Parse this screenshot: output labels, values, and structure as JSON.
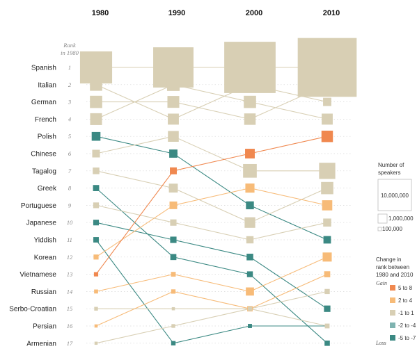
{
  "chart_data": {
    "type": "slopegraph",
    "title": "",
    "years": [
      "1980",
      "1990",
      "2000",
      "2010"
    ],
    "rank_note_line1": "Rank",
    "rank_note_line2": "in 1980",
    "languages": [
      {
        "name": "Spanish",
        "rank1980": "1",
        "ranks": [
          1,
          1,
          1,
          1
        ],
        "speakers": [
          11000000,
          17300000,
          28100000,
          37000000
        ]
      },
      {
        "name": "Italian",
        "rank1980": "2",
        "ranks": [
          2,
          4,
          2,
          3
        ],
        "speakers": [
          1600000,
          1300000,
          1000000,
          730000
        ]
      },
      {
        "name": "German",
        "rank1980": "3",
        "ranks": [
          3,
          3,
          4,
          2
        ],
        "speakers": [
          1600000,
          1500000,
          1400000,
          1100000
        ]
      },
      {
        "name": "French",
        "rank1980": "4",
        "ranks": [
          4,
          2,
          3,
          4
        ],
        "speakers": [
          1500000,
          1700000,
          1600000,
          1300000
        ]
      },
      {
        "name": "Polish",
        "rank1980": "5",
        "ranks": [
          5,
          6,
          9,
          11
        ],
        "speakers": [
          820000,
          720000,
          670000,
          600000
        ]
      },
      {
        "name": "Chinese",
        "rank1980": "6",
        "ranks": [
          6,
          5,
          7,
          7
        ],
        "speakers": [
          630000,
          1250000,
          2000000,
          2800000
        ]
      },
      {
        "name": "Tagalog",
        "rank1980": "7",
        "ranks": [
          7,
          8,
          10,
          8
        ],
        "speakers": [
          470000,
          840000,
          1200000,
          1600000
        ]
      },
      {
        "name": "Greek",
        "rank1980": "8",
        "ranks": [
          8,
          12,
          13,
          17
        ],
        "speakers": [
          400000,
          390000,
          365000,
          300000
        ]
      },
      {
        "name": "Portuguese",
        "rank1980": "9",
        "ranks": [
          9,
          10,
          11,
          10
        ],
        "speakers": [
          350000,
          430000,
          560000,
          690000
        ]
      },
      {
        "name": "Japanese",
        "rank1980": "10",
        "ranks": [
          10,
          11,
          12,
          15
        ],
        "speakers": [
          340000,
          430000,
          470000,
          440000
        ]
      },
      {
        "name": "Yiddish",
        "rank1980": "11",
        "ranks": [
          11,
          17,
          16,
          16
        ],
        "speakers": [
          320000,
          210000,
          180000,
          160000
        ]
      },
      {
        "name": "Korean",
        "rank1980": "12",
        "ranks": [
          12,
          9,
          8,
          9
        ],
        "speakers": [
          270000,
          620000,
          890000,
          1100000
        ]
      },
      {
        "name": "Vietnamese",
        "rank1980": "13",
        "ranks": [
          13,
          7,
          6,
          5
        ],
        "speakers": [
          200000,
          510000,
          1000000,
          1400000
        ]
      },
      {
        "name": "Russian",
        "rank1980": "14",
        "ranks": [
          14,
          13,
          14,
          12
        ],
        "speakers": [
          170000,
          240000,
          710000,
          880000
        ]
      },
      {
        "name": "Serbo-Croatian",
        "rank1980": "15",
        "ranks": [
          15,
          15,
          15,
          14
        ],
        "speakers": [
          150000,
          70000,
          230000,
          280000
        ]
      },
      {
        "name": "Persian",
        "rank1980": "16",
        "ranks": [
          16,
          14,
          15,
          13
        ],
        "speakers": [
          110000,
          200000,
          310000,
          390000
        ]
      },
      {
        "name": "Armenian",
        "rank1980": "17",
        "ranks": [
          17,
          16,
          15,
          16
        ],
        "speakers": [
          100000,
          150000,
          200000,
          240000
        ]
      }
    ],
    "size_legend": {
      "title_line1": "Number of",
      "title_line2": "speakers",
      "items": [
        {
          "label": "10,000,000",
          "value": 10000000
        },
        {
          "label": "1,000,000",
          "value": 1000000
        },
        {
          "label": "100,000",
          "value": 100000
        }
      ]
    },
    "color_legend": {
      "title_line1": "Change in",
      "title_line2": "rank between",
      "title_line3": "1980 and 2010",
      "gain_label": "Gain",
      "loss_label": "Loss",
      "items": [
        {
          "label": "5 to 8",
          "color": "#f0884f"
        },
        {
          "label": "2 to 4",
          "color": "#f7bb78"
        },
        {
          "label": "-1 to 1",
          "color": "#d8cfb4"
        },
        {
          "label": "-2 to -4",
          "color": "#7fb3b0"
        },
        {
          "label": "-5 to -7",
          "color": "#3b8983"
        }
      ]
    }
  }
}
